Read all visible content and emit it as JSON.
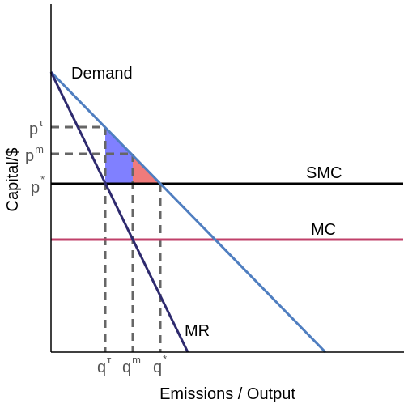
{
  "axes": {
    "x_label": "Emissions / Output",
    "y_label": "Capital/$"
  },
  "curves": {
    "demand": "Demand",
    "marginal_revenue": "MR",
    "social_marginal_cost": "SMC",
    "marginal_cost": "MC"
  },
  "price_ticks": [
    {
      "base": "p",
      "sup": "τ"
    },
    {
      "base": "p",
      "sup": "m"
    },
    {
      "base": "p",
      "sup": "*"
    }
  ],
  "quantity_ticks": [
    {
      "base": "q",
      "sup": "τ"
    },
    {
      "base": "q",
      "sup": "m"
    },
    {
      "base": "q",
      "sup": "*"
    }
  ],
  "colors": {
    "demand": "#4f7ec0",
    "marginal_revenue": "#2e2a6e",
    "social_marginal_cost": "#000000",
    "marginal_cost": "#c0406a",
    "guide": "#666666",
    "blue_area": "#8080ff",
    "red_area": "#f07b7b"
  }
}
